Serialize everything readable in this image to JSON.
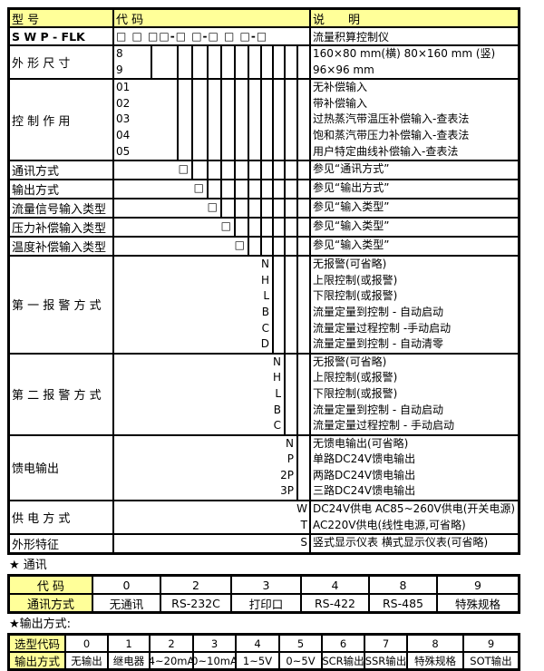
{
  "page": {
    "background": "#FFFFFF",
    "accent_yellow": "#FFFF99",
    "border_black": "#000000"
  },
  "model_table": {
    "headers": {
      "model": "型 号",
      "code": "代 码",
      "desc": "说　　明"
    },
    "model_row": {
      "model": "S W P - FLK",
      "code_template": "□ □ □□-□ □-□ □ □-□",
      "desc": "流量积算控制仪"
    },
    "rows": [
      {
        "label": "外 形 尺 寸",
        "align": "left",
        "close": 0,
        "lines": [
          {
            "code": "8",
            "desc": "160×80 mm(横) 80×160 mm (竖)"
          },
          {
            "code": "9",
            "desc": "96×96 mm"
          }
        ]
      },
      {
        "label": "控 制 作 用",
        "align": "left",
        "close": 1,
        "lines": [
          {
            "code": "01",
            "desc": "无补偿输入"
          },
          {
            "code": "02",
            "desc": "带补偿输入"
          },
          {
            "code": "03",
            "desc": "过热蒸汽带温压补偿输入-查表法"
          },
          {
            "code": "04",
            "desc": "饱和蒸汽带压力补偿输入-查表法"
          },
          {
            "code": "05",
            "desc": "用户特定曲线补偿输入-查表法"
          }
        ]
      },
      {
        "label": "通讯方式",
        "align": "right",
        "close": 2,
        "lines": [
          {
            "code": "□",
            "desc": "参见“通讯方式”"
          }
        ]
      },
      {
        "label": "输出方式",
        "align": "right",
        "close": 3,
        "lines": [
          {
            "code": "□",
            "desc": "参见“输出方式”"
          }
        ]
      },
      {
        "label": "流量信号输入类型",
        "align": "right",
        "close": 4,
        "lines": [
          {
            "code": "□",
            "desc": "参见“输入类型”"
          }
        ]
      },
      {
        "label": "压力补偿输入类型",
        "align": "right",
        "close": 5,
        "lines": [
          {
            "code": "□",
            "desc": "参见“输入类型”"
          }
        ]
      },
      {
        "label": "温度补偿输入类型",
        "align": "right",
        "close": 6,
        "lines": [
          {
            "code": "□",
            "desc": "参见“输入类型”"
          }
        ]
      },
      {
        "label": "第 一 报 警 方 式",
        "align": "right",
        "close": 8,
        "lines": [
          {
            "code": "N",
            "desc": "无报警(可省略)"
          },
          {
            "code": "H",
            "desc": "上限控制(或报警)"
          },
          {
            "code": "L",
            "desc": "下限控制(或报警)"
          },
          {
            "code": "B",
            "desc": "流量定量到控制 - 自动启动"
          },
          {
            "code": "C",
            "desc": "流量定量过程控制 -手动启动"
          },
          {
            "code": "D",
            "desc": "流量定量到控制 - 自动清零"
          }
        ]
      },
      {
        "label": "第 二 报 警 方 式",
        "align": "right",
        "close": 9,
        "lines": [
          {
            "code": "N",
            "desc": "无报警(可省略)"
          },
          {
            "code": "H",
            "desc": "上限控制(或报警)"
          },
          {
            "code": "L",
            "desc": "下限控制(或报警)"
          },
          {
            "code": "B",
            "desc": "流量定量到控制 - 自动启动"
          },
          {
            "code": "C",
            "desc": "流量定量过程控制 - 手动启动"
          }
        ]
      },
      {
        "label": "馈电输出",
        "align": "right",
        "close": 10,
        "lines": [
          {
            "code": "N",
            "desc": "无馈电输出(可省略)"
          },
          {
            "code": "P",
            "desc": "单路DC24V馈电输出"
          },
          {
            "code": "2P",
            "desc": "两路DC24V馈电输出"
          },
          {
            "code": "3P",
            "desc": "三路DC24V馈电输出"
          }
        ]
      },
      {
        "label": "供 电 方 式",
        "align": "right",
        "close": 11,
        "lines": [
          {
            "code": "W",
            "desc": "DC24V供电 AC85~260V供电(开关电源)"
          },
          {
            "code": "T",
            "desc": "AC220V供电(线性电源,可省略)"
          }
        ]
      },
      {
        "label": "外形特征",
        "align": "right",
        "close": 11,
        "lines": [
          {
            "code": "S",
            "desc": "竖式显示仪表 横式显示仪表(可省略)"
          }
        ]
      }
    ]
  },
  "comm_section": {
    "title": "★ 通讯",
    "header_label": "代 码",
    "row_label": "通讯方式",
    "codes": [
      "0",
      "2",
      "3",
      "4",
      "8",
      "9"
    ],
    "values": [
      "无通讯",
      "RS-232C",
      "打印口",
      "RS-422",
      "RS-485",
      "特殊规格"
    ]
  },
  "output_section": {
    "title": "★输出方式:",
    "header_label": "选型代码",
    "row_label": "输出方式",
    "codes": [
      "0",
      "1",
      "2",
      "3",
      "4",
      "5",
      "6",
      "7",
      "8",
      "9"
    ],
    "values": [
      "无输出",
      "继电器",
      "4~20mA",
      "0~10mA",
      "1~5V",
      "0~5V",
      "SCR输出",
      "SSR输出",
      "特殊规格",
      "SOT输出"
    ]
  }
}
